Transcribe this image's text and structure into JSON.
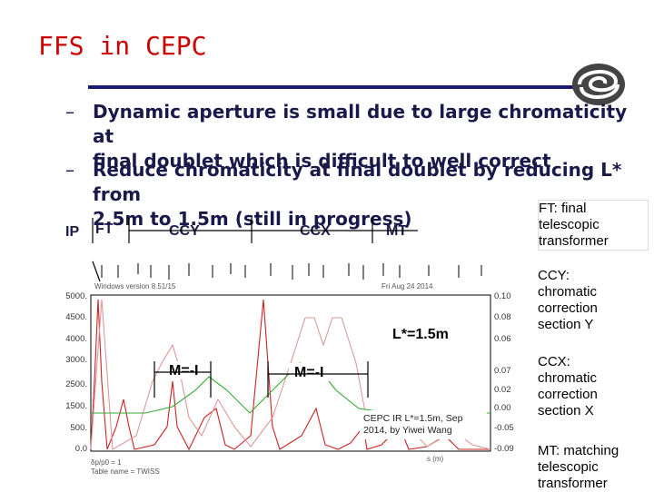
{
  "title": "FFS in CEPC",
  "bullets": [
    {
      "dash": "–",
      "text": "Dynamic aperture is small due to large chromaticity at\nfinal doublet which is difficult to well correct"
    },
    {
      "dash": "–",
      "text": "Reduce chromaticity at final doublet by reducing L* from\n2.5m to 1.5m (still in progress)"
    }
  ],
  "sections": {
    "ip": "IP",
    "ft": "FT",
    "ccy": "CCY",
    "ccx": "CCX",
    "mt": "MT"
  },
  "plot_labels": {
    "lstar": "L*=1.5m",
    "mi_left": "M=-I",
    "mi_right": "M=-I",
    "note": "CEPC IR L*=1.5m, Sep\n2014, by Yiwei Wang"
  },
  "side_notes": {
    "ft": "FT: final\ntelescopic\ntransformer",
    "ccy": "CCY:\nchromatic\ncorrection\nsection Y",
    "ccx": "CCX:\nchromatic\ncorrection\nsection X",
    "mt": "MT: matching\ntelescopic\ntransformer"
  },
  "colors": {
    "title": "#cc0000",
    "text": "#1a1a4a",
    "rule": "#1a1a6e",
    "beta_x": "#cc2222",
    "beta_y": "#dd9999",
    "dispersion": "#33aa33"
  },
  "icons": [
    "ihep-logo-icon"
  ]
}
